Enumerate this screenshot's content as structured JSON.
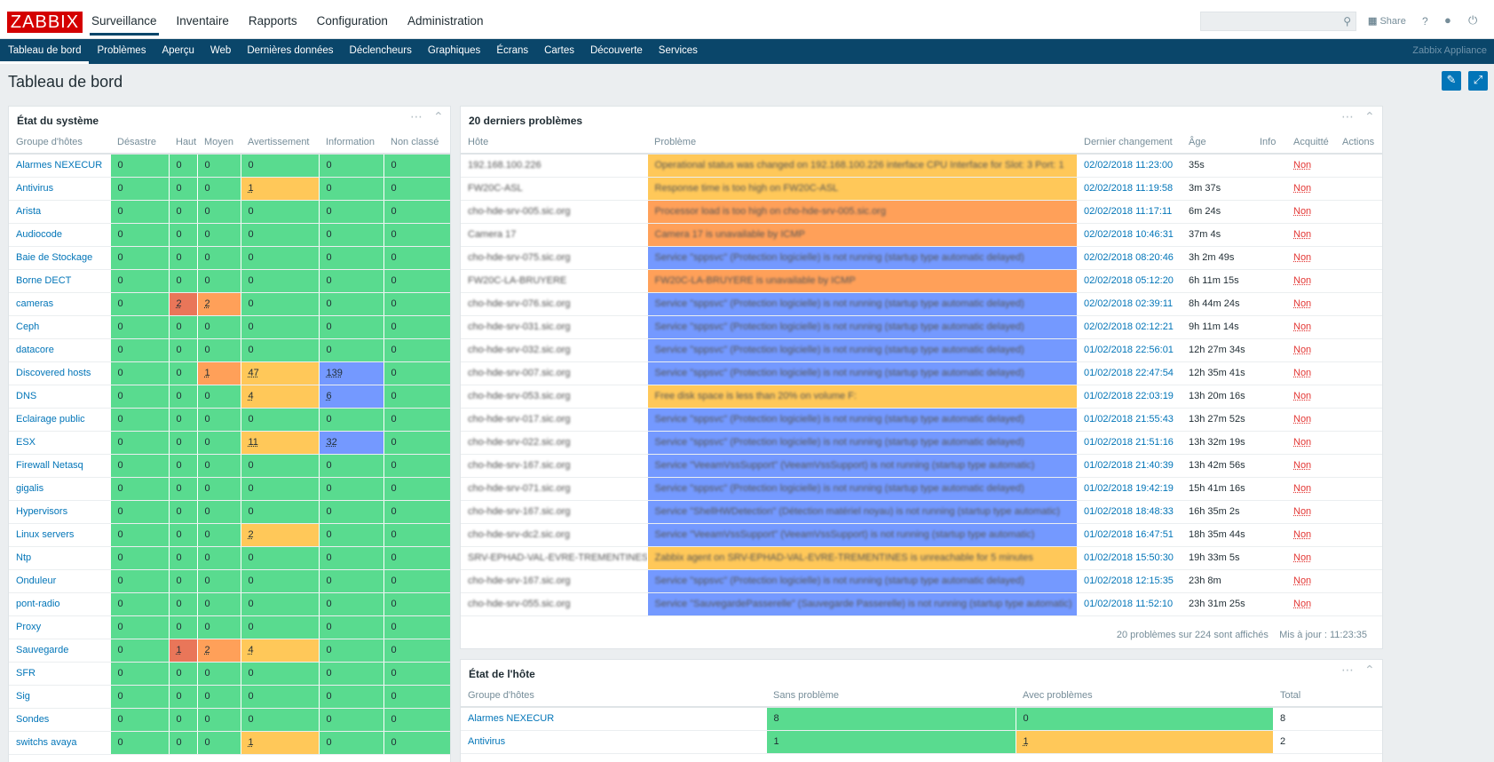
{
  "logo": "ZABBIX",
  "main_menu": [
    "Surveillance",
    "Inventaire",
    "Rapports",
    "Configuration",
    "Administration"
  ],
  "top_right": {
    "share": "Share",
    "help": "?"
  },
  "sub_menu": [
    "Tableau de bord",
    "Problèmes",
    "Aperçu",
    "Web",
    "Dernières données",
    "Déclencheurs",
    "Graphiques",
    "Écrans",
    "Cartes",
    "Découverte",
    "Services"
  ],
  "sub_menu_right": "Zabbix Appliance",
  "page_title": "Tableau de bord",
  "system_status": {
    "title": "État du système",
    "headers": [
      "Groupe d'hôtes",
      "Désastre",
      "Haut",
      "Moyen",
      "Avertissement",
      "Information",
      "Non classé"
    ],
    "rows": [
      {
        "group": "Alarmes NEXECUR",
        "cells": [
          "0",
          "0",
          "0",
          "0",
          "0",
          "0"
        ],
        "colors": [
          "g",
          "g",
          "g",
          "g",
          "g",
          "g"
        ]
      },
      {
        "group": "Antivirus",
        "cells": [
          "0",
          "0",
          "0",
          "1",
          "0",
          "0"
        ],
        "colors": [
          "g",
          "g",
          "g",
          "y",
          "g",
          "g"
        ]
      },
      {
        "group": "Arista",
        "cells": [
          "0",
          "0",
          "0",
          "0",
          "0",
          "0"
        ],
        "colors": [
          "g",
          "g",
          "g",
          "g",
          "g",
          "g"
        ]
      },
      {
        "group": "Audiocode",
        "cells": [
          "0",
          "0",
          "0",
          "0",
          "0",
          "0"
        ],
        "colors": [
          "g",
          "g",
          "g",
          "g",
          "g",
          "g"
        ]
      },
      {
        "group": "Baie de Stockage",
        "cells": [
          "0",
          "0",
          "0",
          "0",
          "0",
          "0"
        ],
        "colors": [
          "g",
          "g",
          "g",
          "g",
          "g",
          "g"
        ]
      },
      {
        "group": "Borne DECT",
        "cells": [
          "0",
          "0",
          "0",
          "0",
          "0",
          "0"
        ],
        "colors": [
          "g",
          "g",
          "g",
          "g",
          "g",
          "g"
        ]
      },
      {
        "group": "cameras",
        "cells": [
          "0",
          "2",
          "2",
          "0",
          "0",
          "0"
        ],
        "colors": [
          "g",
          "r",
          "o",
          "g",
          "g",
          "g"
        ]
      },
      {
        "group": "Ceph",
        "cells": [
          "0",
          "0",
          "0",
          "0",
          "0",
          "0"
        ],
        "colors": [
          "g",
          "g",
          "g",
          "g",
          "g",
          "g"
        ]
      },
      {
        "group": "datacore",
        "cells": [
          "0",
          "0",
          "0",
          "0",
          "0",
          "0"
        ],
        "colors": [
          "g",
          "g",
          "g",
          "g",
          "g",
          "g"
        ]
      },
      {
        "group": "Discovered hosts",
        "cells": [
          "0",
          "0",
          "1",
          "47",
          "139",
          "0"
        ],
        "colors": [
          "g",
          "g",
          "o",
          "y",
          "b",
          "g"
        ]
      },
      {
        "group": "DNS",
        "cells": [
          "0",
          "0",
          "0",
          "4",
          "6",
          "0"
        ],
        "colors": [
          "g",
          "g",
          "g",
          "y",
          "b",
          "g"
        ]
      },
      {
        "group": "Eclairage public",
        "cells": [
          "0",
          "0",
          "0",
          "0",
          "0",
          "0"
        ],
        "colors": [
          "g",
          "g",
          "g",
          "g",
          "g",
          "g"
        ]
      },
      {
        "group": "ESX",
        "cells": [
          "0",
          "0",
          "0",
          "11",
          "32",
          "0"
        ],
        "colors": [
          "g",
          "g",
          "g",
          "y",
          "b",
          "g"
        ]
      },
      {
        "group": "Firewall Netasq",
        "cells": [
          "0",
          "0",
          "0",
          "0",
          "0",
          "0"
        ],
        "colors": [
          "g",
          "g",
          "g",
          "g",
          "g",
          "g"
        ]
      },
      {
        "group": "gigalis",
        "cells": [
          "0",
          "0",
          "0",
          "0",
          "0",
          "0"
        ],
        "colors": [
          "g",
          "g",
          "g",
          "g",
          "g",
          "g"
        ]
      },
      {
        "group": "Hypervisors",
        "cells": [
          "0",
          "0",
          "0",
          "0",
          "0",
          "0"
        ],
        "colors": [
          "g",
          "g",
          "g",
          "g",
          "g",
          "g"
        ]
      },
      {
        "group": "Linux servers",
        "cells": [
          "0",
          "0",
          "0",
          "2",
          "0",
          "0"
        ],
        "colors": [
          "g",
          "g",
          "g",
          "y",
          "g",
          "g"
        ]
      },
      {
        "group": "Ntp",
        "cells": [
          "0",
          "0",
          "0",
          "0",
          "0",
          "0"
        ],
        "colors": [
          "g",
          "g",
          "g",
          "g",
          "g",
          "g"
        ]
      },
      {
        "group": "Onduleur",
        "cells": [
          "0",
          "0",
          "0",
          "0",
          "0",
          "0"
        ],
        "colors": [
          "g",
          "g",
          "g",
          "g",
          "g",
          "g"
        ]
      },
      {
        "group": "pont-radio",
        "cells": [
          "0",
          "0",
          "0",
          "0",
          "0",
          "0"
        ],
        "colors": [
          "g",
          "g",
          "g",
          "g",
          "g",
          "g"
        ]
      },
      {
        "group": "Proxy",
        "cells": [
          "0",
          "0",
          "0",
          "0",
          "0",
          "0"
        ],
        "colors": [
          "g",
          "g",
          "g",
          "g",
          "g",
          "g"
        ]
      },
      {
        "group": "Sauvegarde",
        "cells": [
          "0",
          "1",
          "2",
          "4",
          "0",
          "0"
        ],
        "colors": [
          "g",
          "r",
          "o",
          "y",
          "g",
          "g"
        ]
      },
      {
        "group": "SFR",
        "cells": [
          "0",
          "0",
          "0",
          "0",
          "0",
          "0"
        ],
        "colors": [
          "g",
          "g",
          "g",
          "g",
          "g",
          "g"
        ]
      },
      {
        "group": "Sig",
        "cells": [
          "0",
          "0",
          "0",
          "0",
          "0",
          "0"
        ],
        "colors": [
          "g",
          "g",
          "g",
          "g",
          "g",
          "g"
        ]
      },
      {
        "group": "Sondes",
        "cells": [
          "0",
          "0",
          "0",
          "0",
          "0",
          "0"
        ],
        "colors": [
          "g",
          "g",
          "g",
          "g",
          "g",
          "g"
        ]
      },
      {
        "group": "switchs avaya",
        "cells": [
          "0",
          "0",
          "0",
          "1",
          "0",
          "0"
        ],
        "colors": [
          "g",
          "g",
          "g",
          "y",
          "g",
          "g"
        ]
      }
    ]
  },
  "problems": {
    "title": "20 derniers problèmes",
    "headers": [
      "Hôte",
      "Problème",
      "Dernier changement",
      "Âge",
      "Info",
      "Acquitté",
      "Actions"
    ],
    "rows": [
      {
        "host": "192.168.100.226",
        "problem": "Operational status was changed on 192.168.100.226 interface CPU Interface for Slot: 3 Port: 1",
        "sev": "y",
        "time": "02/02/2018 11:23:00",
        "age": "35s",
        "ack": "Non"
      },
      {
        "host": "FW20C-ASL",
        "problem": "Response time is too high on FW20C-ASL",
        "sev": "y",
        "time": "02/02/2018 11:19:58",
        "age": "3m 37s",
        "ack": "Non"
      },
      {
        "host": "cho-hde-srv-005.sic.org",
        "problem": "Processor load is too high on cho-hde-srv-005.sic.org",
        "sev": "o",
        "time": "02/02/2018 11:17:11",
        "age": "6m 24s",
        "ack": "Non"
      },
      {
        "host": "Camera 17",
        "problem": "Camera 17 is unavailable by ICMP",
        "sev": "o",
        "time": "02/02/2018 10:46:31",
        "age": "37m 4s",
        "ack": "Non"
      },
      {
        "host": "cho-hde-srv-075.sic.org",
        "problem": "Service \"sppsvc\" (Protection logicielle) is not running (startup type automatic delayed)",
        "sev": "b",
        "time": "02/02/2018 08:20:46",
        "age": "3h 2m 49s",
        "ack": "Non"
      },
      {
        "host": "FW20C-LA-BRUYERE",
        "problem": "FW20C-LA-BRUYERE is unavailable by ICMP",
        "sev": "o",
        "time": "02/02/2018 05:12:20",
        "age": "6h 11m 15s",
        "ack": "Non"
      },
      {
        "host": "cho-hde-srv-076.sic.org",
        "problem": "Service \"sppsvc\" (Protection logicielle) is not running (startup type automatic delayed)",
        "sev": "b",
        "time": "02/02/2018 02:39:11",
        "age": "8h 44m 24s",
        "ack": "Non"
      },
      {
        "host": "cho-hde-srv-031.sic.org",
        "problem": "Service \"sppsvc\" (Protection logicielle) is not running (startup type automatic delayed)",
        "sev": "b",
        "time": "02/02/2018 02:12:21",
        "age": "9h 11m 14s",
        "ack": "Non"
      },
      {
        "host": "cho-hde-srv-032.sic.org",
        "problem": "Service \"sppsvc\" (Protection logicielle) is not running (startup type automatic delayed)",
        "sev": "b",
        "time": "01/02/2018 22:56:01",
        "age": "12h 27m 34s",
        "ack": "Non"
      },
      {
        "host": "cho-hde-srv-007.sic.org",
        "problem": "Service \"sppsvc\" (Protection logicielle) is not running (startup type automatic delayed)",
        "sev": "b",
        "time": "01/02/2018 22:47:54",
        "age": "12h 35m 41s",
        "ack": "Non"
      },
      {
        "host": "cho-hde-srv-053.sic.org",
        "problem": "Free disk space is less than 20% on volume F:",
        "sev": "y",
        "time": "01/02/2018 22:03:19",
        "age": "13h 20m 16s",
        "ack": "Non"
      },
      {
        "host": "cho-hde-srv-017.sic.org",
        "problem": "Service \"sppsvc\" (Protection logicielle) is not running (startup type automatic delayed)",
        "sev": "b",
        "time": "01/02/2018 21:55:43",
        "age": "13h 27m 52s",
        "ack": "Non"
      },
      {
        "host": "cho-hde-srv-022.sic.org",
        "problem": "Service \"sppsvc\" (Protection logicielle) is not running (startup type automatic delayed)",
        "sev": "b",
        "time": "01/02/2018 21:51:16",
        "age": "13h 32m 19s",
        "ack": "Non"
      },
      {
        "host": "cho-hde-srv-167.sic.org",
        "problem": "Service \"VeeamVssSupport\" (VeeamVssSupport) is not running (startup type automatic)",
        "sev": "b",
        "time": "01/02/2018 21:40:39",
        "age": "13h 42m 56s",
        "ack": "Non"
      },
      {
        "host": "cho-hde-srv-071.sic.org",
        "problem": "Service \"sppsvc\" (Protection logicielle) is not running (startup type automatic delayed)",
        "sev": "b",
        "time": "01/02/2018 19:42:19",
        "age": "15h 41m 16s",
        "ack": "Non"
      },
      {
        "host": "cho-hde-srv-167.sic.org",
        "problem": "Service \"ShellHWDetection\" (Détection matériel noyau) is not running (startup type automatic)",
        "sev": "b",
        "time": "01/02/2018 18:48:33",
        "age": "16h 35m 2s",
        "ack": "Non"
      },
      {
        "host": "cho-hde-srv-dc2.sic.org",
        "problem": "Service \"VeeamVssSupport\" (VeeamVssSupport) is not running (startup type automatic)",
        "sev": "b",
        "time": "01/02/2018 16:47:51",
        "age": "18h 35m 44s",
        "ack": "Non"
      },
      {
        "host": "SRV-EPHAD-VAL-EVRE-TREMENTINES",
        "problem": "Zabbix agent on SRV-EPHAD-VAL-EVRE-TREMENTINES is unreachable for 5 minutes",
        "sev": "y",
        "time": "01/02/2018 15:50:30",
        "age": "19h 33m 5s",
        "ack": "Non"
      },
      {
        "host": "cho-hde-srv-167.sic.org",
        "problem": "Service \"sppsvc\" (Protection logicielle) is not running (startup type automatic delayed)",
        "sev": "b",
        "time": "01/02/2018 12:15:35",
        "age": "23h 8m",
        "ack": "Non"
      },
      {
        "host": "cho-hde-srv-055.sic.org",
        "problem": "Service \"SauvegardePasserelle\" (Sauvegarde Passerelle) is not running (startup type automatic)",
        "sev": "b",
        "time": "01/02/2018 11:52:10",
        "age": "23h 31m 25s",
        "ack": "Non"
      }
    ],
    "summary": "20 problèmes sur 224 sont affichés",
    "updated": "Mis à jour : 11:23:35"
  },
  "host_status": {
    "title": "État de l'hôte",
    "headers": [
      "Groupe d'hôtes",
      "Sans problème",
      "Avec problèmes",
      "Total"
    ],
    "rows": [
      {
        "group": "Alarmes NEXECUR",
        "ok": "8",
        "bad": "0",
        "bad_color": "g",
        "total": "8"
      },
      {
        "group": "Antivirus",
        "ok": "1",
        "bad": "1",
        "bad_color": "y",
        "total": "2"
      }
    ]
  },
  "colors": {
    "green": "#59db8f",
    "yellow": "#ffc859",
    "orange": "#ffa059",
    "red": "#e97659",
    "blue": "#7499ff",
    "nav": "#0a466a",
    "logo": "#d40000"
  }
}
